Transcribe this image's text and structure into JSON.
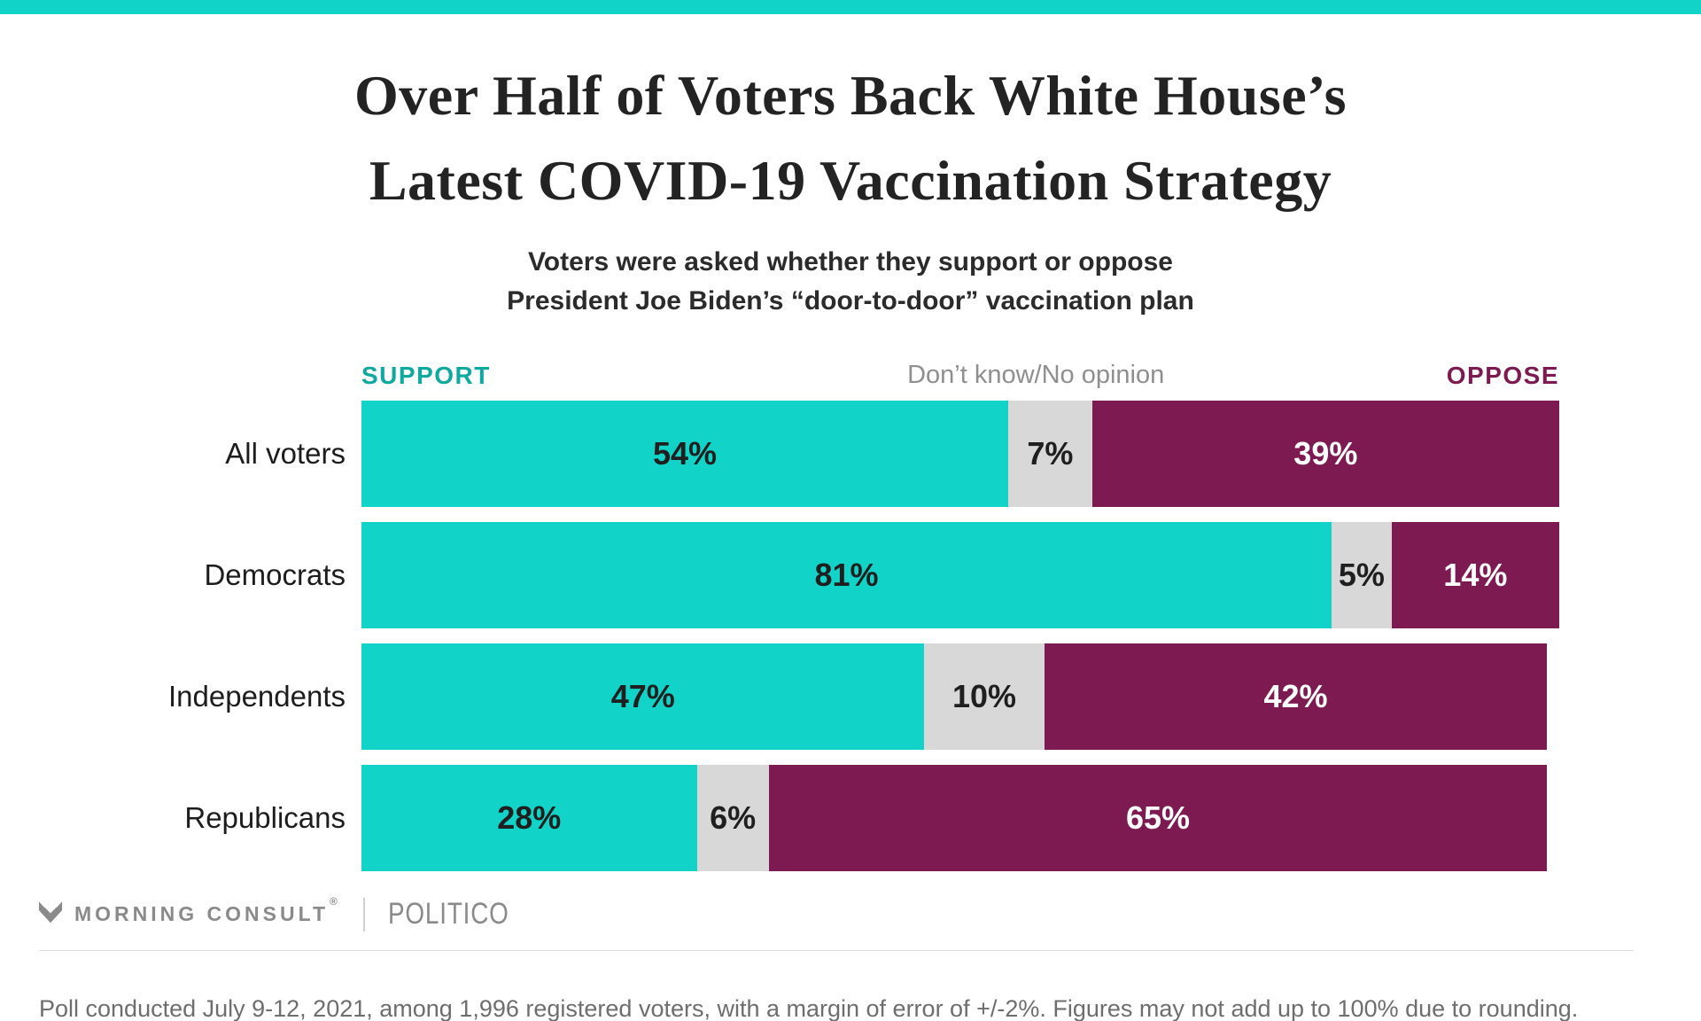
{
  "accent_color": "#11d3c7",
  "title": {
    "line1": "Over Half of Voters Back White House’s",
    "line2": "Latest COVID-19 Vaccination Strategy"
  },
  "subtitle": {
    "line1": "Voters were asked whether they support or oppose",
    "line2": "President Joe Biden’s “door-to-door” vaccination plan"
  },
  "legend": {
    "support": {
      "label": "SUPPORT",
      "color": "#0fa9a0"
    },
    "neutral": {
      "label": "Don’t know/No opinion",
      "color": "#8f8f8f"
    },
    "oppose": {
      "label": "OPPOSE",
      "color": "#7d1a52"
    }
  },
  "chart_data": {
    "type": "bar",
    "orientation": "horizontal",
    "stacked": true,
    "title": "Over Half of Voters Back White House’s Latest COVID-19 Vaccination Strategy",
    "subtitle": "Voters were asked whether they support or oppose President Joe Biden’s “door-to-door” vaccination plan",
    "categories": [
      "All voters",
      "Democrats",
      "Independents",
      "Republicans"
    ],
    "series": [
      {
        "key": "support",
        "name": "Support",
        "color": "#11d3c7",
        "text_color": "#1f1f1f",
        "values": [
          54,
          81,
          47,
          28
        ]
      },
      {
        "key": "neutral",
        "name": "Don’t know/No opinion",
        "color": "#d8d8d8",
        "text_color": "#1f1f1f",
        "values": [
          7,
          5,
          10,
          6
        ]
      },
      {
        "key": "oppose",
        "name": "Oppose",
        "color": "#7d1a52",
        "text_color": "#ffffff",
        "values": [
          39,
          14,
          42,
          65
        ]
      }
    ],
    "value_suffix": "%",
    "xlim": [
      0,
      100
    ],
    "grid": false,
    "legend_position": "top"
  },
  "footer": {
    "brand1": "MORNING CONSULT",
    "brand1_mark": "®",
    "brand2": "POLITICO",
    "note": "Poll conducted July 9-12, 2021, among 1,996 registered voters, with a margin of error of +/-2%. Figures may not add up to 100% due to rounding."
  }
}
